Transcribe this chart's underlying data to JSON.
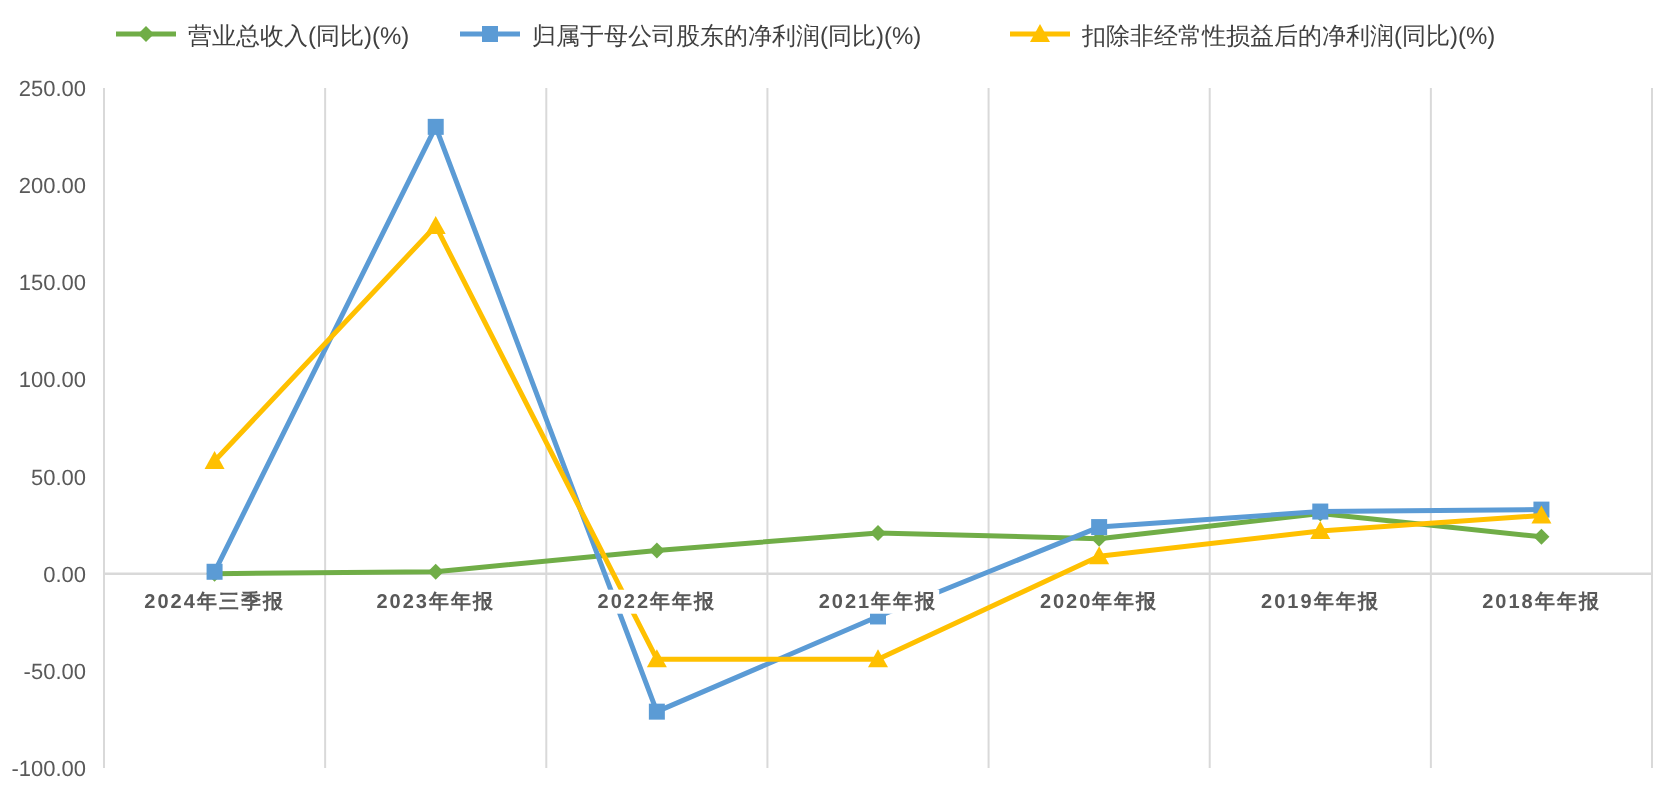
{
  "chart_data": {
    "type": "line",
    "categories": [
      "2024年三季报",
      "2023年年报",
      "2022年年报",
      "2021年年报",
      "2020年年报",
      "2019年年报",
      "2018年年报"
    ],
    "series": [
      {
        "name": "营业总收入(同比)(%)",
        "color": "#70ad47",
        "marker": "diamond",
        "values": [
          0,
          1,
          12,
          21,
          18,
          31,
          19
        ]
      },
      {
        "name": "归属于母公司股东的净利润(同比)(%)",
        "color": "#5b9bd5",
        "marker": "square",
        "values": [
          1,
          230,
          -71,
          -22,
          24,
          32,
          33
        ]
      },
      {
        "name": "扣除非经常性损益后的净利润(同比)(%)",
        "color": "#ffc000",
        "marker": "triangle",
        "values": [
          58,
          179,
          -44,
          -44,
          9,
          22,
          30
        ]
      }
    ],
    "ylim": [
      -100,
      250
    ],
    "yticks": [
      {
        "value": -100,
        "label": "-100.00"
      },
      {
        "value": -50,
        "label": "-50.00"
      },
      {
        "value": 0,
        "label": "0.00"
      },
      {
        "value": 50,
        "label": "50.00"
      },
      {
        "value": 100,
        "label": "100.00"
      },
      {
        "value": 150,
        "label": "150.00"
      },
      {
        "value": 200,
        "label": "200.00"
      },
      {
        "value": 250,
        "label": "250.00"
      }
    ],
    "grid": "x",
    "legend": "top",
    "line_style": "solid"
  }
}
